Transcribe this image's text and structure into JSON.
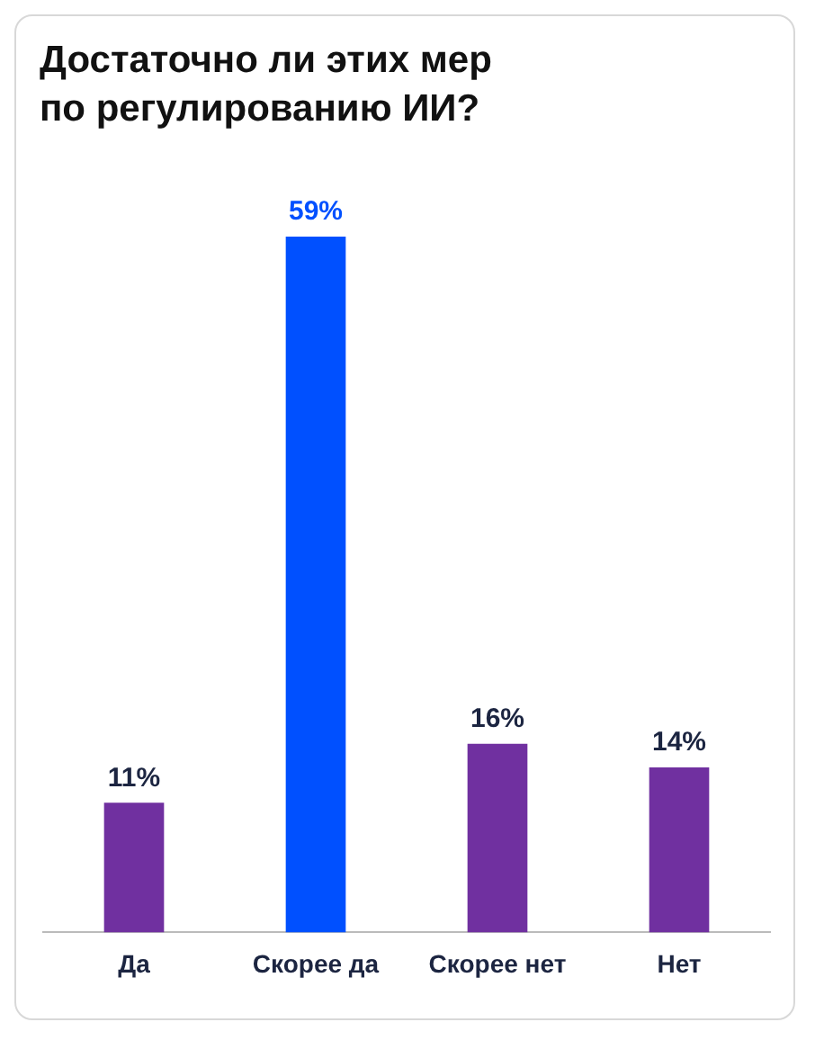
{
  "chart_data": {
    "type": "bar",
    "title": "Достаточно ли этих мер\nпо регулированию ИИ?",
    "categories": [
      "Да",
      "Скорее да",
      "Скорее нет",
      "Нет"
    ],
    "values": [
      11,
      59,
      16,
      14
    ],
    "colors": [
      "#7030a0",
      "#0050ff",
      "#7030a0",
      "#7030a0"
    ],
    "value_labels": [
      "11%",
      "59%",
      "16%",
      "14%"
    ],
    "grid": false,
    "legend": false
  }
}
